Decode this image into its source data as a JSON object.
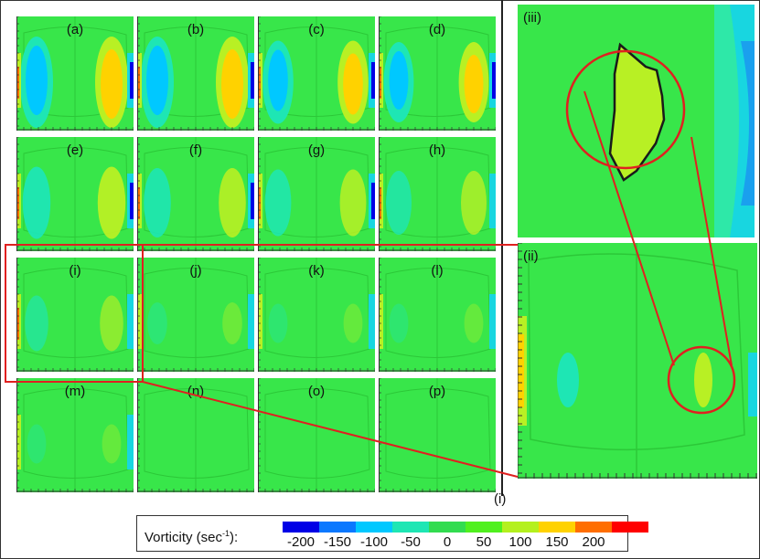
{
  "panels": [
    {
      "label": "(a)",
      "intensity": 1.0
    },
    {
      "label": "(b)",
      "intensity": 1.0
    },
    {
      "label": "(c)",
      "intensity": 0.85
    },
    {
      "label": "(d)",
      "intensity": 0.8
    },
    {
      "label": "(e)",
      "intensity": 0.65
    },
    {
      "label": "(f)",
      "intensity": 0.6
    },
    {
      "label": "(g)",
      "intensity": 0.55
    },
    {
      "label": "(h)",
      "intensity": 0.5
    },
    {
      "label": "(i)",
      "intensity": 0.35
    },
    {
      "label": "(j)",
      "intensity": 0.1
    },
    {
      "label": "(k)",
      "intensity": 0.05
    },
    {
      "label": "(l)",
      "intensity": 0.05
    },
    {
      "label": "(m)",
      "intensity": 0.05
    },
    {
      "label": "(n)",
      "intensity": 0.0
    },
    {
      "label": "(o)",
      "intensity": 0.0
    },
    {
      "label": "(p)",
      "intensity": 0.0
    }
  ],
  "grid_caption": "(i)",
  "zoom_panels": {
    "ii_label": "(ii)",
    "iii_label": "(iii)"
  },
  "legend": {
    "title": "Vorticity (sec",
    "title_exp": "-1",
    "title_tail": "):",
    "ticks": [
      "-200",
      "-150",
      "-100",
      "-50",
      "0",
      "50",
      "100",
      "150",
      "200"
    ],
    "colors": [
      "#0000e6",
      "#0a78ff",
      "#00c8ff",
      "#1ee6b4",
      "#32dc50",
      "#50f01e",
      "#b4f01e",
      "#ffd200",
      "#ff6e00",
      "#ff0000"
    ]
  },
  "colors": {
    "background_green": "#38e64a",
    "contour_green": "#2fd83c",
    "callout_red": "#e02020"
  }
}
